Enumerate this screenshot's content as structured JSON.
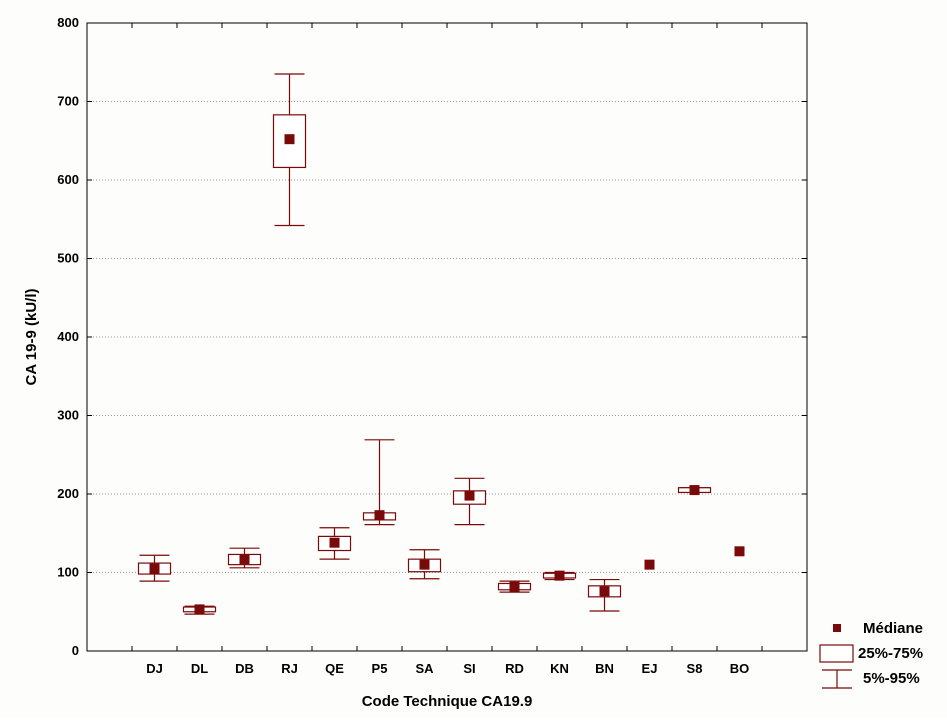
{
  "chart_data": {
    "type": "boxplot",
    "xlabel": "Code Technique CA19.9",
    "ylabel": "CA 19-9 (kU/l)",
    "ylim": [
      0,
      800
    ],
    "yticks": [
      0,
      100,
      200,
      300,
      400,
      500,
      600,
      700,
      800
    ],
    "grid": true,
    "legend_position": "bottom-right",
    "colors": {
      "marker": "#7a0a0a",
      "box": "#7a0a0a",
      "grid": "#999999"
    },
    "legend": [
      {
        "symbol": "square-marker",
        "label": "Médiane"
      },
      {
        "symbol": "box",
        "label": "25%-75%"
      },
      {
        "symbol": "whisker",
        "label": "5%-95%"
      }
    ],
    "categories": [
      "DJ",
      "DL",
      "DB",
      "RJ",
      "QE",
      "P5",
      "SA",
      "SI",
      "RD",
      "KN",
      "BN",
      "EJ",
      "S8",
      "BO"
    ],
    "median": [
      105,
      53,
      117,
      652,
      138,
      173,
      110,
      198,
      82,
      96,
      76,
      110,
      205,
      127
    ],
    "q1": [
      98,
      50,
      110,
      616,
      128,
      167,
      101,
      187,
      78,
      93,
      69,
      110,
      202,
      127
    ],
    "q3": [
      112,
      56,
      123,
      683,
      146,
      176,
      117,
      204,
      86,
      99,
      83,
      110,
      208,
      127
    ],
    "p5": [
      89,
      47,
      106,
      542,
      117,
      161,
      92,
      161,
      75,
      91,
      51,
      110,
      202,
      127
    ],
    "p95": [
      122,
      57,
      131,
      735,
      157,
      269,
      129,
      220,
      89,
      100,
      91,
      110,
      208,
      127
    ]
  }
}
